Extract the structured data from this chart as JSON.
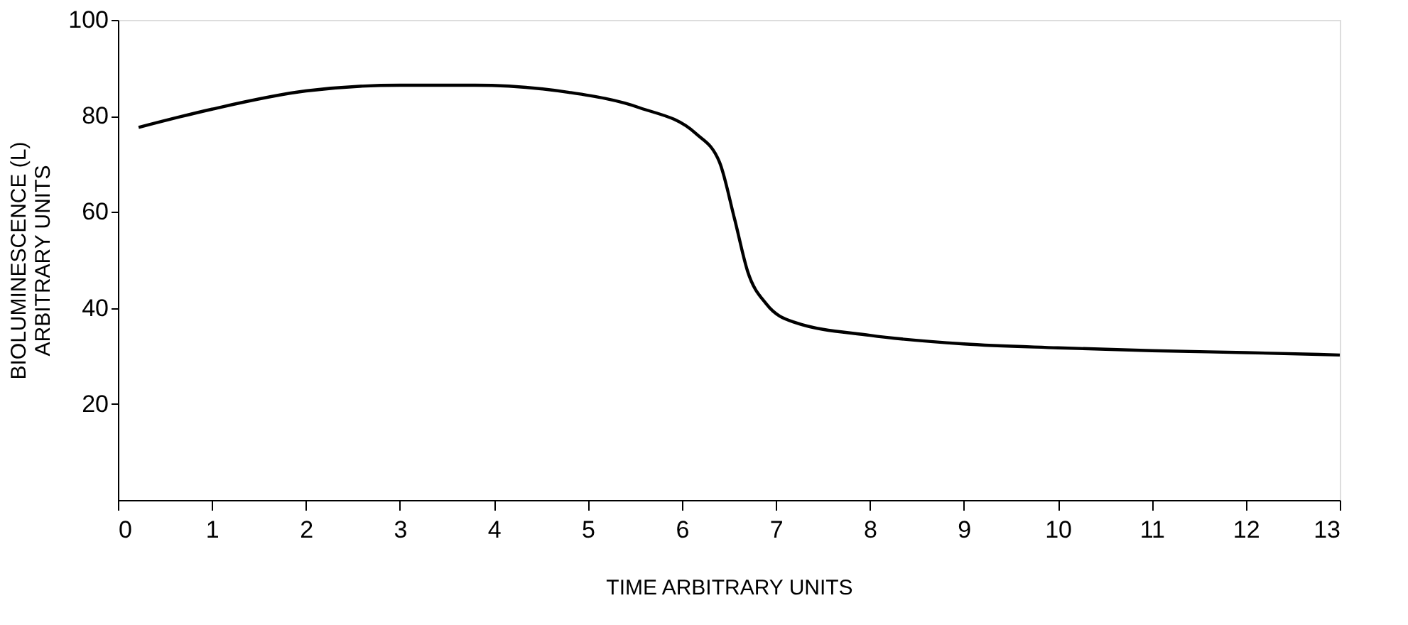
{
  "chart_data": {
    "type": "line",
    "xlabel": "TIME ARBITRARY UNITS",
    "ylabel": "BIOLUMINESCENCE (L)\nARBITRARY UNITS",
    "x": [
      0.22,
      1.0,
      2.0,
      3.0,
      3.8,
      4.8,
      5.55,
      6.15,
      6.4,
      6.56,
      6.7,
      6.9,
      7.2,
      8.0,
      9.0,
      10.0,
      11.0,
      12.0,
      13.0
    ],
    "series": [
      {
        "color": "#000000",
        "values": [
          77.6,
          81.4,
          85.2,
          86.4,
          86.4,
          84.9,
          81.7,
          76.3,
          70.4,
          58.6,
          47.6,
          40.8,
          37.0,
          34.3,
          32.5,
          31.7,
          31.1,
          30.7,
          30.2
        ]
      }
    ],
    "xlim": [
      0,
      13
    ],
    "xticks": [
      0,
      1,
      2,
      3,
      4,
      5,
      6,
      7,
      8,
      9,
      10,
      11,
      12,
      13
    ],
    "ylim": [
      0,
      100
    ],
    "yticks": [
      20,
      40,
      60,
      80,
      100
    ],
    "grid": false,
    "legend": false,
    "marker": "none",
    "line_style": "solid"
  }
}
